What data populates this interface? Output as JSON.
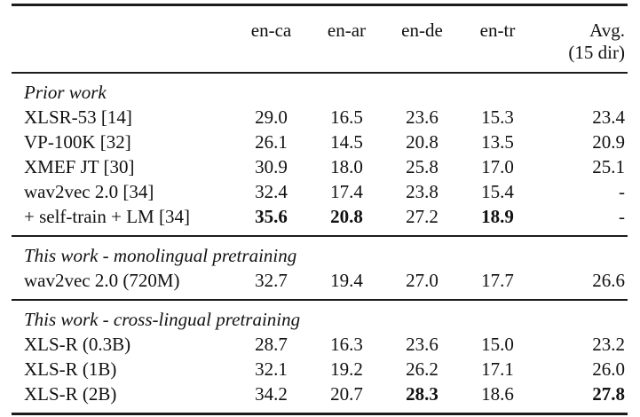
{
  "table": {
    "header": {
      "corner": "",
      "cols": [
        "en-ca",
        "en-ar",
        "en-de",
        "en-tr"
      ],
      "avg_line1": "Avg.",
      "avg_line2": "(15 dir)"
    },
    "sections": [
      {
        "title": "Prior work",
        "rows": [
          {
            "label": "XLSR-53 [14]",
            "values": [
              "29.0",
              "16.5",
              "23.6",
              "15.3",
              "23.4"
            ]
          },
          {
            "label": "VP-100K [32]",
            "values": [
              "26.1",
              "14.5",
              "20.8",
              "13.5",
              "20.9"
            ]
          },
          {
            "label": "XMEF JT [30]",
            "values": [
              "30.9",
              "18.0",
              "25.8",
              "17.0",
              "25.1"
            ]
          },
          {
            "label": "wav2vec 2.0 [34]",
            "values": [
              "32.4",
              "17.4",
              "23.8",
              "15.4",
              "-"
            ]
          },
          {
            "label": "+ self-train + LM [34]",
            "values": [
              "35.6",
              "20.8",
              "27.2",
              "18.9",
              "-"
            ],
            "bold_columns": [
              0,
              1,
              3
            ]
          }
        ]
      },
      {
        "title": "This work - monolingual pretraining",
        "rows": [
          {
            "label": "wav2vec 2.0 (720M)",
            "values": [
              "32.7",
              "19.4",
              "27.0",
              "17.7",
              "26.6"
            ]
          }
        ]
      },
      {
        "title": "This work - cross-lingual pretraining",
        "rows": [
          {
            "label": "XLS-R (0.3B)",
            "values": [
              "28.7",
              "16.3",
              "23.6",
              "15.0",
              "23.2"
            ]
          },
          {
            "label": "XLS-R (1B)",
            "values": [
              "32.1",
              "19.2",
              "26.2",
              "17.1",
              "26.0"
            ]
          },
          {
            "label": "XLS-R (2B)",
            "values": [
              "34.2",
              "20.7",
              "28.3",
              "18.6",
              "27.8"
            ],
            "bold_columns": [
              2,
              4
            ]
          }
        ]
      }
    ],
    "colors": {
      "text": "#111111",
      "rule": "#1c1c1c",
      "background": "#ffffff"
    }
  }
}
